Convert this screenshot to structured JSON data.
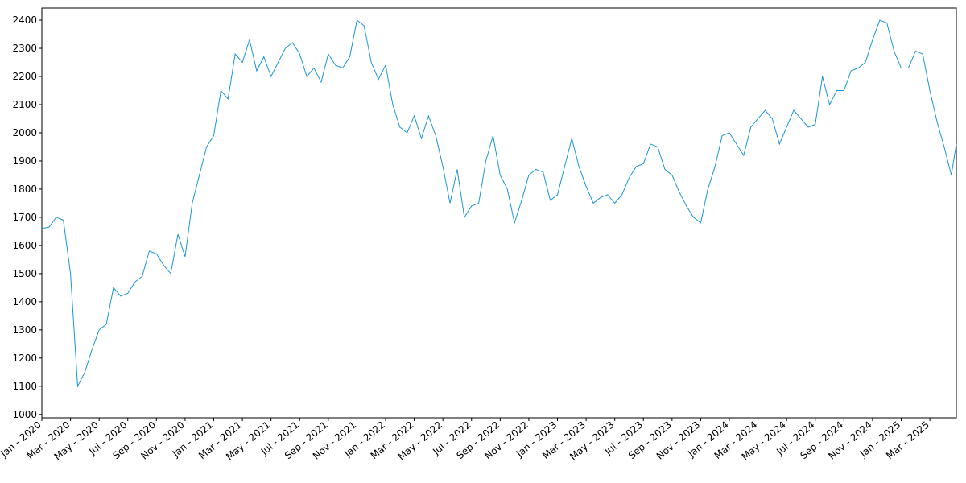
{
  "chart_data": {
    "type": "line",
    "x": [
      0,
      0.5,
      1,
      1.5,
      2,
      2.5,
      3,
      3.5,
      4,
      4.5,
      5,
      5.5,
      6,
      6.5,
      7,
      7.5,
      8,
      8.5,
      9,
      9.5,
      10,
      10.5,
      11,
      11.5,
      12,
      12.5,
      13,
      13.5,
      14,
      14.5,
      15,
      15.5,
      16,
      16.5,
      17,
      17.5,
      18,
      18.5,
      19,
      19.5,
      20,
      20.5,
      21,
      21.5,
      22,
      22.5,
      23,
      23.5,
      24,
      24.5,
      25,
      25.5,
      26,
      26.5,
      27,
      27.5,
      28,
      28.5,
      29,
      29.5,
      30,
      30.5,
      31,
      31.5,
      32,
      32.5,
      33,
      33.5,
      34,
      34.5,
      35,
      35.5,
      36,
      36.5,
      37,
      37.5,
      38,
      38.5,
      39,
      39.5,
      40,
      40.5,
      41,
      41.5,
      42,
      42.5,
      43,
      43.5,
      44,
      44.5,
      45,
      45.5,
      46,
      46.5,
      47,
      47.5,
      48,
      48.5,
      49,
      49.5,
      50,
      50.5,
      51,
      51.5,
      52,
      52.5,
      53,
      53.5,
      54,
      54.5,
      55,
      55.5,
      56,
      56.5,
      57,
      57.5,
      58,
      58.5,
      59,
      59.5,
      60,
      60.5,
      61,
      61.5,
      62,
      62.5,
      63,
      63.5,
      63.85
    ],
    "series": [
      {
        "color": "#1a96d4",
        "values": [
          1660,
          1665,
          1700,
          1690,
          1500,
          1100,
          1150,
          1230,
          1300,
          1320,
          1450,
          1420,
          1430,
          1470,
          1490,
          1580,
          1570,
          1530,
          1500,
          1640,
          1560,
          1750,
          1850,
          1950,
          1990,
          2150,
          2120,
          2280,
          2250,
          2330,
          2220,
          2270,
          2200,
          2250,
          2300,
          2320,
          2280,
          2200,
          2230,
          2180,
          2280,
          2240,
          2230,
          2270,
          2400,
          2380,
          2250,
          2190,
          2240,
          2100,
          2020,
          2000,
          2060,
          1980,
          2060,
          1990,
          1880,
          1750,
          1870,
          1700,
          1740,
          1750,
          1900,
          1990,
          1850,
          1800,
          1680,
          1760,
          1850,
          1870,
          1860,
          1760,
          1780,
          1880,
          1980,
          1880,
          1810,
          1750,
          1770,
          1780,
          1750,
          1780,
          1840,
          1880,
          1890,
          1960,
          1950,
          1870,
          1850,
          1790,
          1740,
          1700,
          1680,
          1800,
          1880,
          1990,
          2000,
          1960,
          1920,
          2020,
          2050,
          2080,
          2050,
          1960,
          2020,
          2080,
          2050,
          2020,
          2030,
          2200,
          2100,
          2150,
          2150,
          2220,
          2230,
          2250,
          2330,
          2400,
          2390,
          2290,
          2230,
          2230,
          2290,
          2280,
          2150,
          2040,
          1950,
          1850,
          1960
        ]
      }
    ],
    "xlim": [
      0,
      63.85
    ],
    "xticks": [
      {
        "value": 0,
        "label": "Jan - 2020"
      },
      {
        "value": 2,
        "label": "Mar - 2020"
      },
      {
        "value": 4,
        "label": "May - 2020"
      },
      {
        "value": 6,
        "label": "Jul - 2020"
      },
      {
        "value": 8,
        "label": "Sep - 2020"
      },
      {
        "value": 10,
        "label": "Nov - 2020"
      },
      {
        "value": 12,
        "label": "Jan - 2021"
      },
      {
        "value": 14,
        "label": "Mar - 2021"
      },
      {
        "value": 16,
        "label": "May - 2021"
      },
      {
        "value": 18,
        "label": "Jul - 2021"
      },
      {
        "value": 20,
        "label": "Sep - 2021"
      },
      {
        "value": 22,
        "label": "Nov - 2021"
      },
      {
        "value": 24,
        "label": "Jan - 2022"
      },
      {
        "value": 26,
        "label": "Mar - 2022"
      },
      {
        "value": 28,
        "label": "May - 2022"
      },
      {
        "value": 30,
        "label": "Jul - 2022"
      },
      {
        "value": 32,
        "label": "Sep - 2022"
      },
      {
        "value": 34,
        "label": "Nov - 2022"
      },
      {
        "value": 36,
        "label": "Jan - 2023"
      },
      {
        "value": 38,
        "label": "Mar - 2023"
      },
      {
        "value": 40,
        "label": "May - 2023"
      },
      {
        "value": 42,
        "label": "Jul - 2023"
      },
      {
        "value": 44,
        "label": "Sep - 2023"
      },
      {
        "value": 46,
        "label": "Nov - 2023"
      },
      {
        "value": 48,
        "label": "Jan - 2024"
      },
      {
        "value": 50,
        "label": "Mar - 2024"
      },
      {
        "value": 52,
        "label": "May - 2024"
      },
      {
        "value": 54,
        "label": "Jul - 2024"
      },
      {
        "value": 56,
        "label": "Sep - 2024"
      },
      {
        "value": 58,
        "label": "Nov - 2024"
      },
      {
        "value": 60,
        "label": "Jan - 2025"
      },
      {
        "value": 62,
        "label": "Mar - 2025"
      }
    ],
    "ylim": [
      988,
      2443
    ],
    "yticks": [
      1000,
      1100,
      1200,
      1300,
      1400,
      1500,
      1600,
      1700,
      1800,
      1900,
      2000,
      2100,
      2200,
      2300,
      2400
    ]
  }
}
